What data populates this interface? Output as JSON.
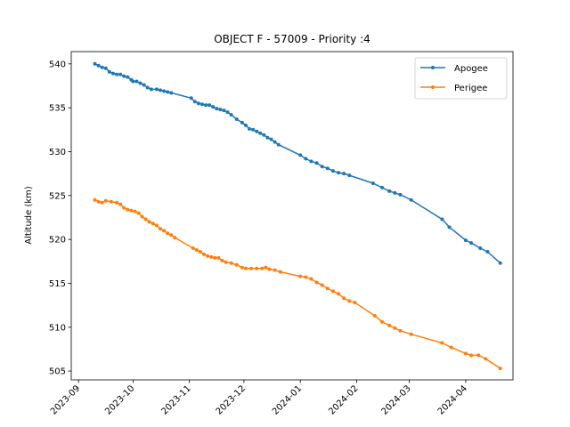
{
  "chart_data": {
    "type": "line",
    "title": "OBJECT F - 57009 - Priority :4",
    "xlabel": "",
    "ylabel": "Altitude (km)",
    "xlim": [
      "2023-08-28",
      "2024-04-27"
    ],
    "ylim": [
      504.0,
      541.4
    ],
    "x_ticks": [
      "2023-09",
      "2023-10",
      "2023-11",
      "2023-12",
      "2024-01",
      "2024-02",
      "2024-03",
      "2024-04"
    ],
    "y_ticks": [
      505,
      510,
      515,
      520,
      525,
      530,
      535,
      540
    ],
    "grid": false,
    "legend": "top-right",
    "series": [
      {
        "name": "Apogee",
        "color": "#1f77b4",
        "points": [
          [
            "2023-09-10",
            540.0
          ],
          [
            "2023-09-12",
            539.8
          ],
          [
            "2023-09-14",
            539.6
          ],
          [
            "2023-09-16",
            539.5
          ],
          [
            "2023-09-18",
            539.1
          ],
          [
            "2023-09-20",
            538.9
          ],
          [
            "2023-09-22",
            538.8
          ],
          [
            "2023-09-24",
            538.8
          ],
          [
            "2023-09-26",
            538.6
          ],
          [
            "2023-09-28",
            538.5
          ],
          [
            "2023-09-30",
            538.2
          ],
          [
            "2023-10-01",
            538.0
          ],
          [
            "2023-10-03",
            538.0
          ],
          [
            "2023-10-05",
            537.8
          ],
          [
            "2023-10-07",
            537.6
          ],
          [
            "2023-10-09",
            537.3
          ],
          [
            "2023-10-11",
            537.1
          ],
          [
            "2023-10-14",
            537.1
          ],
          [
            "2023-10-16",
            537.0
          ],
          [
            "2023-10-18",
            536.9
          ],
          [
            "2023-10-20",
            536.8
          ],
          [
            "2023-10-22",
            536.7
          ],
          [
            "2023-11-02",
            536.1
          ],
          [
            "2023-11-04",
            535.7
          ],
          [
            "2023-11-06",
            535.5
          ],
          [
            "2023-11-08",
            535.4
          ],
          [
            "2023-11-10",
            535.3
          ],
          [
            "2023-11-12",
            535.3
          ],
          [
            "2023-11-14",
            535.1
          ],
          [
            "2023-11-16",
            534.9
          ],
          [
            "2023-11-18",
            534.8
          ],
          [
            "2023-11-20",
            534.7
          ],
          [
            "2023-11-22",
            534.5
          ],
          [
            "2023-11-24",
            534.2
          ],
          [
            "2023-11-27",
            533.7
          ],
          [
            "2023-11-30",
            533.3
          ],
          [
            "2023-12-02",
            533.0
          ],
          [
            "2023-12-04",
            532.6
          ],
          [
            "2023-12-06",
            532.5
          ],
          [
            "2023-12-08",
            532.3
          ],
          [
            "2023-12-10",
            532.1
          ],
          [
            "2023-12-12",
            531.9
          ],
          [
            "2023-12-14",
            531.6
          ],
          [
            "2023-12-16",
            531.4
          ],
          [
            "2023-12-18",
            531.1
          ],
          [
            "2023-12-20",
            530.8
          ],
          [
            "2024-01-01",
            529.6
          ],
          [
            "2024-01-04",
            529.2
          ],
          [
            "2024-01-07",
            528.9
          ],
          [
            "2024-01-10",
            528.7
          ],
          [
            "2024-01-13",
            528.3
          ],
          [
            "2024-01-16",
            528.1
          ],
          [
            "2024-01-19",
            527.8
          ],
          [
            "2024-01-22",
            527.6
          ],
          [
            "2024-01-25",
            527.5
          ],
          [
            "2024-01-28",
            527.3
          ],
          [
            "2024-02-10",
            526.4
          ],
          [
            "2024-02-15",
            525.9
          ],
          [
            "2024-02-19",
            525.5
          ],
          [
            "2024-02-22",
            525.3
          ],
          [
            "2024-02-25",
            525.1
          ],
          [
            "2024-03-02",
            524.5
          ],
          [
            "2024-03-19",
            522.3
          ],
          [
            "2024-03-23",
            521.4
          ],
          [
            "2024-04-01",
            519.9
          ],
          [
            "2024-04-04",
            519.6
          ],
          [
            "2024-04-09",
            519.0
          ],
          [
            "2024-04-13",
            518.6
          ],
          [
            "2024-04-20",
            517.3
          ]
        ]
      },
      {
        "name": "Perigee",
        "color": "#ff7f0e",
        "points": [
          [
            "2023-09-10",
            524.5
          ],
          [
            "2023-09-12",
            524.3
          ],
          [
            "2023-09-14",
            524.2
          ],
          [
            "2023-09-16",
            524.4
          ],
          [
            "2023-09-19",
            524.3
          ],
          [
            "2023-09-22",
            524.2
          ],
          [
            "2023-09-24",
            524.0
          ],
          [
            "2023-09-26",
            523.6
          ],
          [
            "2023-09-28",
            523.4
          ],
          [
            "2023-09-30",
            523.3
          ],
          [
            "2023-10-02",
            523.2
          ],
          [
            "2023-10-04",
            523.0
          ],
          [
            "2023-10-06",
            522.6
          ],
          [
            "2023-10-08",
            522.3
          ],
          [
            "2023-10-10",
            522.0
          ],
          [
            "2023-10-12",
            521.8
          ],
          [
            "2023-10-14",
            521.6
          ],
          [
            "2023-10-16",
            521.2
          ],
          [
            "2023-10-18",
            521.0
          ],
          [
            "2023-10-20",
            520.7
          ],
          [
            "2023-10-22",
            520.5
          ],
          [
            "2023-10-24",
            520.2
          ],
          [
            "2023-11-03",
            519.0
          ],
          [
            "2023-11-05",
            518.8
          ],
          [
            "2023-11-07",
            518.6
          ],
          [
            "2023-11-09",
            518.3
          ],
          [
            "2023-11-11",
            518.1
          ],
          [
            "2023-11-13",
            518.0
          ],
          [
            "2023-11-15",
            517.9
          ],
          [
            "2023-11-17",
            517.9
          ],
          [
            "2023-11-19",
            517.6
          ],
          [
            "2023-11-21",
            517.4
          ],
          [
            "2023-11-24",
            517.3
          ],
          [
            "2023-11-27",
            517.1
          ],
          [
            "2023-11-30",
            516.8
          ],
          [
            "2023-12-02",
            516.7
          ],
          [
            "2023-12-05",
            516.7
          ],
          [
            "2023-12-08",
            516.7
          ],
          [
            "2023-12-11",
            516.7
          ],
          [
            "2023-12-13",
            516.8
          ],
          [
            "2023-12-15",
            516.6
          ],
          [
            "2023-12-18",
            516.5
          ],
          [
            "2023-12-21",
            516.3
          ],
          [
            "2024-01-01",
            515.8
          ],
          [
            "2024-01-04",
            515.7
          ],
          [
            "2024-01-07",
            515.5
          ],
          [
            "2024-01-10",
            515.1
          ],
          [
            "2024-01-13",
            514.8
          ],
          [
            "2024-01-16",
            514.4
          ],
          [
            "2024-01-19",
            514.1
          ],
          [
            "2024-01-22",
            513.8
          ],
          [
            "2024-01-25",
            513.3
          ],
          [
            "2024-01-28",
            513.0
          ],
          [
            "2024-01-31",
            512.8
          ],
          [
            "2024-02-11",
            511.3
          ],
          [
            "2024-02-15",
            510.6
          ],
          [
            "2024-02-19",
            510.2
          ],
          [
            "2024-02-22",
            509.9
          ],
          [
            "2024-02-25",
            509.6
          ],
          [
            "2024-03-02",
            509.2
          ],
          [
            "2024-03-19",
            508.2
          ],
          [
            "2024-03-24",
            507.7
          ],
          [
            "2024-04-01",
            507.0
          ],
          [
            "2024-04-04",
            506.8
          ],
          [
            "2024-04-08",
            506.8
          ],
          [
            "2024-04-12",
            506.4
          ],
          [
            "2024-04-20",
            505.3
          ]
        ]
      }
    ]
  }
}
